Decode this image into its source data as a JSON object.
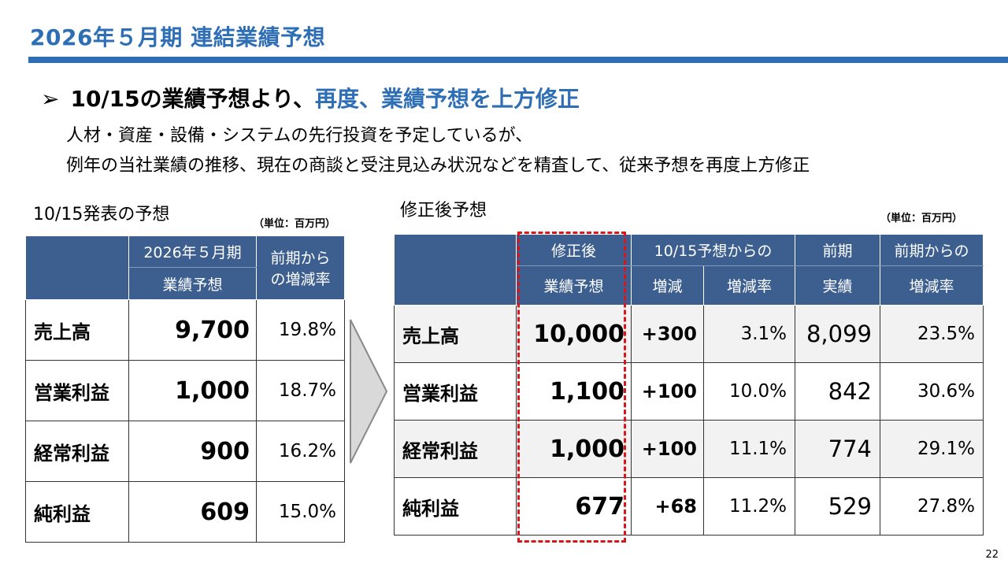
{
  "title": "2026年５月期 連結業績予想",
  "heading": {
    "arrow": "➢",
    "lead": "10/15の業績予想より、",
    "highlight": "再度、業績予想を上方修正"
  },
  "body_lines": [
    "人材・資産・設備・システムの先行投資を予定しているが、",
    "例年の当社業績の推移、現在の商談と受注見込み状況などを精査して、従来予想を再度上方修正"
  ],
  "left_table": {
    "label": "10/15発表の予想",
    "unit": "（単位：百万円）",
    "header": {
      "col1_line1": "2026年５月期",
      "col1_line2": "業績予想",
      "col2_line1": "前期から",
      "col2_line2": "の増減率"
    },
    "rows": [
      {
        "name": "売上高",
        "value": "9,700",
        "rate": "19.8%"
      },
      {
        "name": "営業利益",
        "value": "1,000",
        "rate": "18.7%"
      },
      {
        "name": "経常利益",
        "value": "900",
        "rate": "16.2%"
      },
      {
        "name": "純利益",
        "value": "609",
        "rate": "15.0%"
      }
    ]
  },
  "right_table": {
    "label": "修正後予想",
    "unit": "（単位：百万円）",
    "header": {
      "revised_line1": "修正後",
      "revised_line2": "業績予想",
      "from_forecast": "10/15予想からの",
      "diff": "増減",
      "diff_rate": "増減率",
      "prev_line1": "前期",
      "prev_line2": "実績",
      "prev_change_line1": "前期からの",
      "prev_change_line2": "増減率"
    },
    "rows": [
      {
        "name": "売上高",
        "value": "10,000",
        "diff": "+300",
        "diff_rate": "3.1%",
        "prev": "8,099",
        "prev_rate": "23.5%"
      },
      {
        "name": "営業利益",
        "value": "1,100",
        "diff": "+100",
        "diff_rate": "10.0%",
        "prev": "842",
        "prev_rate": "30.6%"
      },
      {
        "name": "経常利益",
        "value": "1,000",
        "diff": "+100",
        "diff_rate": "11.1%",
        "prev": "774",
        "prev_rate": "29.1%"
      },
      {
        "name": "純利益",
        "value": "677",
        "diff": "+68",
        "diff_rate": "11.2%",
        "prev": "529",
        "prev_rate": "27.8%"
      }
    ]
  },
  "page_number": "22",
  "colors": {
    "accent": "#2e6eb5",
    "table_header": "#3c5f8f",
    "highlight_box": "#d9161c"
  }
}
